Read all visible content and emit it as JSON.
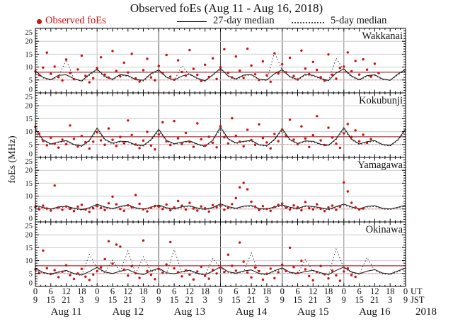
{
  "title": "Observed foEs (Aug 11 - Aug 16, 2018)",
  "legend": {
    "observed": "Observed foEs",
    "median27": "27-day median",
    "median5": "5-day median"
  },
  "colors": {
    "observed": "#cc1111",
    "median27": "#111111",
    "median5": "#333333",
    "ref_solid": "#b03038",
    "ref_dotted": "#e59898",
    "grid": "#cbcbcb",
    "day_line_light": "#bcbcbc",
    "day_line_dark": "#4a4a4a",
    "day_line_medium": "#888888"
  },
  "y_axis": {
    "label": "foEs (MHz)",
    "min": 0,
    "max": 25,
    "major_ticks": [
      0,
      5,
      10,
      15,
      20,
      25
    ]
  },
  "x_axis": {
    "total_hours": 144,
    "ut_tick_labels": [
      "0",
      "6",
      "12",
      "18"
    ],
    "jst_tick_labels": [
      "9",
      "15",
      "21",
      "3"
    ],
    "final_ut": "0",
    "final_jst": "9",
    "ut_unit": "UT",
    "jst_unit": "JST",
    "year": "2018",
    "day_labels": [
      "Aug 11",
      "Aug 12",
      "Aug 13",
      "Aug 14",
      "Aug 15",
      "Aug 16"
    ]
  },
  "chart_data": {
    "type": "scatter",
    "title": "Observed foEs (Aug 11 - Aug 16, 2018)",
    "ylabel": "foEs (MHz)",
    "ylim": [
      0,
      25
    ],
    "xlim_hours_ut": [
      0,
      144
    ],
    "grid": true,
    "legend_position": "top",
    "scatter_step_hours": 1.5,
    "median_step_hours": 3,
    "stations": [
      {
        "name": "Wakkanai",
        "ref_solid_mhz": 8,
        "ref_dotted_mhz": 5,
        "scatter": [
          8.3,
          6.9,
          9.8,
          15.6,
          7.4,
          10.2,
          6.1,
          4.8,
          12.9,
          7.7,
          5.3,
          9.1,
          14.4,
          6.6,
          4.1,
          5.7,
          9.6,
          13.8,
          7.1,
          5.9,
          16.2,
          8.5,
          6.4,
          11.7,
          7.9,
          15.1,
          5.6,
          4.4,
          8.8,
          13.2,
          6.0,
          4.9,
          10.4,
          7.6,
          14.7,
          6.3,
          5.1,
          12.6,
          8.1,
          6.7,
          16.6,
          9.3,
          7.0,
          4.6,
          10.9,
          6.2,
          13.4,
          5.4,
          9.9,
          16.9,
          7.8,
          6.0,
          14.1,
          8.6,
          5.8,
          17.1,
          10.6,
          7.2,
          5.0,
          12.2,
          6.8,
          4.3,
          15.3,
          7.5,
          11.1,
          8.0,
          13.6,
          6.5,
          5.2,
          16.4,
          9.4,
          7.3,
          12.0,
          8.9,
          6.1,
          4.7,
          14.9,
          7.0,
          5.5,
          9.7,
          10.2,
          15.7,
          8.4,
          12.4,
          7.1,
          13.0,
          9.0,
          6.3,
          11.3,
          7.6,
          null,
          null,
          null,
          null,
          null,
          null,
          null
        ],
        "median27": [
          8.6,
          6.0,
          5.1,
          6.8,
          7.0,
          5.5,
          4.6,
          7.2,
          9.2,
          6.4,
          5.3,
          7.1,
          6.7,
          5.2,
          4.9,
          7.5,
          8.9,
          6.1,
          5.0,
          6.5,
          7.3,
          5.7,
          4.7,
          7.0,
          9.5,
          6.6,
          5.4,
          6.9,
          7.1,
          5.3,
          5.0,
          7.4,
          9.0,
          6.3,
          5.2,
          7.2,
          6.8,
          5.6,
          4.8,
          7.7,
          9.3,
          6.5,
          5.1,
          6.7,
          7.0,
          5.4,
          4.9,
          7.3,
          9.1
        ],
        "median5": [
          7.8,
          5.8,
          4.9,
          6.4,
          12.8,
          5.4,
          4.5,
          6.8,
          8.8,
          6.1,
          5.0,
          6.9,
          6.4,
          5.0,
          4.6,
          7.1,
          8.5,
          5.9,
          4.8,
          10.5,
          7.0,
          5.5,
          4.4,
          6.7,
          9.1,
          6.3,
          5.1,
          6.6,
          6.9,
          5.1,
          4.7,
          15.8,
          8.7,
          6.0,
          5.0,
          6.8,
          6.5,
          5.4,
          4.5,
          13.5,
          8.9,
          6.2,
          4.9,
          6.4,
          6.7,
          5.2,
          4.8,
          7.0,
          8.6
        ]
      },
      {
        "name": "Kokubunji",
        "ref_solid_mhz": 8,
        "ref_dotted_mhz": 5,
        "scatter": [
          11.8,
          9.2,
          6.4,
          4.7,
          7.6,
          5.3,
          3.8,
          6.9,
          5.1,
          12.4,
          7.2,
          4.2,
          8.3,
          5.9,
          3.4,
          6.1,
          9.7,
          6.6,
          4.9,
          11.2,
          6.8,
          4.4,
          7.9,
          5.5,
          14.3,
          8.7,
          5.0,
          3.6,
          6.5,
          9.9,
          4.6,
          3.1,
          8.9,
          13.6,
          6.2,
          4.8,
          14.1,
          7.4,
          5.2,
          9.5,
          6.0,
          4.1,
          13.2,
          7.0,
          4.5,
          8.0,
          5.7,
          3.9,
          12.1,
          7.8,
          5.4,
          15.2,
          8.4,
          6.1,
          4.3,
          10.7,
          6.7,
          4.9,
          12.8,
          7.5,
          5.8,
          3.5,
          9.1,
          6.3,
          10.8,
          8.2,
          14.6,
          6.9,
          5.1,
          12.0,
          7.3,
          4.0,
          8.6,
          16.0,
          6.6,
          4.8,
          11.5,
          7.7,
          5.3,
          3.7,
          9.3,
          12.9,
          7.9,
          10.5,
          6.2,
          8.8,
          5.6,
          7.1,
          null,
          null,
          null,
          null,
          null,
          null,
          null,
          null,
          null
        ],
        "median27": [
          10.8,
          6.8,
          5.2,
          6.0,
          6.5,
          5.0,
          4.4,
          6.6,
          11.4,
          7.0,
          5.5,
          6.3,
          6.1,
          4.8,
          4.6,
          6.9,
          10.9,
          6.6,
          5.3,
          5.9,
          6.4,
          5.2,
          4.3,
          6.7,
          11.8,
          7.2,
          5.6,
          6.2,
          6.6,
          4.9,
          4.5,
          7.0,
          11.1,
          6.9,
          5.4,
          6.4,
          6.2,
          5.1,
          4.7,
          7.2,
          11.5,
          7.1,
          5.2,
          6.1,
          6.5,
          5.0,
          4.6,
          6.8,
          11.0
        ],
        "median5": [
          9.8,
          6.4,
          5.0,
          5.8,
          6.2,
          4.8,
          4.2,
          6.3,
          10.6,
          6.7,
          5.2,
          6.0,
          5.9,
          4.6,
          4.4,
          6.6,
          10.2,
          6.3,
          5.1,
          5.7,
          6.1,
          5.0,
          4.1,
          6.4,
          11.0,
          6.9,
          5.3,
          6.0,
          6.3,
          4.7,
          4.3,
          6.7,
          10.4,
          6.6,
          5.2,
          6.1,
          5.9,
          4.9,
          4.5,
          6.9,
          10.8,
          6.8,
          5.0,
          5.8,
          6.2,
          4.8,
          4.4,
          6.5,
          10.3
        ]
      },
      {
        "name": "Yamagawa",
        "ref_solid_mhz": null,
        "ref_dotted_mhz": 5,
        "scatter": [
          5.8,
          4.9,
          6.3,
          5.2,
          4.4,
          14.1,
          5.6,
          4.7,
          6.0,
          5.1,
          4.2,
          5.9,
          6.6,
          4.8,
          3.9,
          5.3,
          6.1,
          5.4,
          4.6,
          7.2,
          9.8,
          6.8,
          5.0,
          4.3,
          6.4,
          5.7,
          10.4,
          7.0,
          4.9,
          4.1,
          5.5,
          6.2,
          5.9,
          5.0,
          6.7,
          4.5,
          5.6,
          8.1,
          6.3,
          4.8,
          7.4,
          5.2,
          4.4,
          6.0,
          5.3,
          4.0,
          6.5,
          5.7,
          6.2,
          4.7,
          5.4,
          6.9,
          9.2,
          13.4,
          15.1,
          12.6,
          7.8,
          5.9,
          4.6,
          6.1,
          5.0,
          4.3,
          5.8,
          6.6,
          7.1,
          5.5,
          4.8,
          6.4,
          5.7,
          4.5,
          7.7,
          5.3,
          4.9,
          6.8,
          5.1,
          4.2,
          5.6,
          6.3,
          4.7,
          5.9,
          15.3,
          11.8,
          7.4,
          5.6,
          4.8,
          5.2,
          null,
          null,
          null,
          null,
          null,
          null,
          null,
          null,
          null,
          null,
          null
        ],
        "median27": [
          6.4,
          5.6,
          5.0,
          5.8,
          6.1,
          5.3,
          4.8,
          5.5,
          6.8,
          5.8,
          5.2,
          6.0,
          6.6,
          5.5,
          5.0,
          5.7,
          6.5,
          5.5,
          5.1,
          5.9,
          6.2,
          5.4,
          4.9,
          5.6,
          7.0,
          5.9,
          5.3,
          6.1,
          6.4,
          5.2,
          5.0,
          5.8,
          6.6,
          5.7,
          5.2,
          6.2,
          6.0,
          5.5,
          4.9,
          5.9,
          6.9,
          5.8,
          5.1,
          6.0,
          6.3,
          5.3,
          5.0,
          5.7,
          6.5
        ],
        "median5": [
          6.0,
          5.3,
          4.8,
          5.5,
          5.8,
          5.0,
          4.6,
          5.2,
          6.4,
          5.5,
          5.0,
          5.7,
          6.2,
          5.2,
          4.8,
          5.4,
          6.1,
          5.2,
          4.9,
          5.6,
          5.9,
          5.1,
          4.7,
          5.3,
          6.6,
          5.6,
          5.0,
          5.8,
          6.0,
          4.9,
          4.8,
          5.5,
          6.2,
          5.4,
          4.9,
          5.9,
          5.7,
          5.2,
          4.6,
          5.6,
          6.5,
          5.5,
          4.8,
          5.7,
          6.0,
          5.0,
          4.7,
          5.4,
          6.1
        ]
      },
      {
        "name": "Okinawa",
        "ref_solid_mhz": 8,
        "ref_dotted_mhz": 5,
        "scatter": [
          6.6,
          5.2,
          13.9,
          7.1,
          4.8,
          6.3,
          3.6,
          5.7,
          8.2,
          4.4,
          2.9,
          5.0,
          6.8,
          3.8,
          2.5,
          4.6,
          5.9,
          7.4,
          10.6,
          17.5,
          8.8,
          16.2,
          15.4,
          6.5,
          4.2,
          7.8,
          5.1,
          3.3,
          17.8,
          6.0,
          4.5,
          2.8,
          6.7,
          5.3,
          8.5,
          17.2,
          7.0,
          5.5,
          3.9,
          6.2,
          4.6,
          2.7,
          5.8,
          7.6,
          4.1,
          3.0,
          6.4,
          5.0,
          7.2,
          5.6,
          12.3,
          8.0,
          6.1,
          17.0,
          9.6,
          5.4,
          3.5,
          7.3,
          5.9,
          2.6,
          4.9,
          6.9,
          3.2,
          5.5,
          8.4,
          6.0,
          15.0,
          7.5,
          5.2,
          9.9,
          6.6,
          4.0,
          2.4,
          5.6,
          7.9,
          4.7,
          3.1,
          6.1,
          4.3,
          2.2,
          5.8,
          7.0,
          4.4,
          3.7,
          null,
          null,
          null,
          null,
          null,
          null,
          null,
          null,
          null,
          null,
          null,
          null,
          null
        ],
        "median27": [
          7.0,
          5.4,
          4.8,
          5.6,
          6.2,
          5.0,
          4.4,
          5.8,
          7.4,
          5.6,
          5.0,
          5.9,
          6.5,
          5.2,
          4.6,
          6.0,
          7.1,
          5.3,
          4.9,
          5.7,
          6.3,
          5.1,
          4.5,
          5.9,
          7.6,
          5.7,
          5.1,
          6.0,
          6.4,
          5.0,
          4.7,
          6.1,
          7.2,
          5.5,
          5.0,
          5.8,
          6.2,
          5.3,
          4.6,
          6.2,
          7.5,
          5.6,
          4.9,
          5.9,
          6.5,
          5.2,
          4.8,
          6.0,
          7.2
        ],
        "median5": [
          6.6,
          5.1,
          4.6,
          5.3,
          5.9,
          4.8,
          4.2,
          12.4,
          7.0,
          5.3,
          10.2,
          5.6,
          13.8,
          5.0,
          11.5,
          5.7,
          6.7,
          5.0,
          14.2,
          5.4,
          6.0,
          4.9,
          4.3,
          10.8,
          7.2,
          5.4,
          4.9,
          5.7,
          13.0,
          4.8,
          4.5,
          5.8,
          6.8,
          5.2,
          4.8,
          10.5,
          5.9,
          5.0,
          4.4,
          14.5,
          7.1,
          5.3,
          4.7,
          11.2,
          6.2,
          4.9,
          4.6,
          5.7,
          6.9
        ]
      }
    ]
  }
}
